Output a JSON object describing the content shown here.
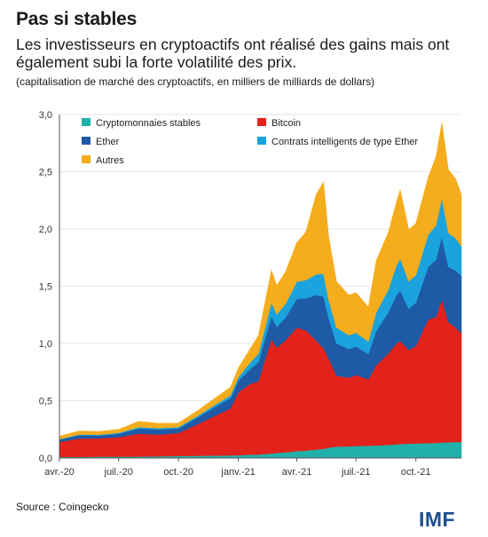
{
  "title": "Pas si stables",
  "subtitle": "Les investisseurs en cryptoactifs ont réalisé des gains mais ont également subi la forte volatilité des prix.",
  "unit_note": "(capitalisation de marché des cryptoactifs, en milliers de milliards de dollars)",
  "source": "Source : Coingecko",
  "logo": "IMF",
  "chart_data": {
    "type": "area",
    "stacked": true,
    "x": [
      "2020-04-01",
      "2020-05-01",
      "2020-06-01",
      "2020-07-01",
      "2020-08-01",
      "2020-09-01",
      "2020-10-01",
      "2020-11-01",
      "2020-12-01",
      "2020-12-20",
      "2021-01-01",
      "2021-01-20",
      "2021-02-01",
      "2021-02-21",
      "2021-03-01",
      "2021-03-15",
      "2021-04-01",
      "2021-04-15",
      "2021-05-01",
      "2021-05-12",
      "2021-05-20",
      "2021-06-01",
      "2021-06-20",
      "2021-07-01",
      "2021-07-20",
      "2021-08-01",
      "2021-08-20",
      "2021-09-01",
      "2021-09-07",
      "2021-09-20",
      "2021-10-01",
      "2021-10-20",
      "2021-11-01",
      "2021-11-10",
      "2021-11-20",
      "2021-12-01",
      "2021-12-10"
    ],
    "x_ticks": [
      "avr.-20",
      "juil.-20",
      "oct.-20",
      "janv.-21",
      "avr.-21",
      "juil.-21",
      "oct.-21"
    ],
    "ylim": [
      0,
      3.0
    ],
    "y_ticks": [
      "0,0",
      "0,5",
      "1,0",
      "1,5",
      "2,0",
      "2,5",
      "3,0"
    ],
    "legend_position": "top",
    "series": [
      {
        "name": "Cryptomonnaies stables",
        "color": "#20b2aa",
        "values": [
          0.01,
          0.01,
          0.012,
          0.012,
          0.013,
          0.015,
          0.018,
          0.02,
          0.022,
          0.023,
          0.025,
          0.03,
          0.03,
          0.04,
          0.045,
          0.05,
          0.06,
          0.065,
          0.075,
          0.08,
          0.09,
          0.1,
          0.102,
          0.105,
          0.108,
          0.11,
          0.115,
          0.12,
          0.122,
          0.125,
          0.127,
          0.13,
          0.132,
          0.135,
          0.138,
          0.14,
          0.14
        ]
      },
      {
        "name": "Bitcoin",
        "color": "#e3231b",
        "values": [
          0.13,
          0.16,
          0.16,
          0.17,
          0.2,
          0.19,
          0.2,
          0.28,
          0.36,
          0.41,
          0.55,
          0.62,
          0.64,
          1.0,
          0.92,
          0.98,
          1.08,
          1.05,
          0.95,
          0.88,
          0.78,
          0.62,
          0.6,
          0.62,
          0.58,
          0.7,
          0.8,
          0.88,
          0.9,
          0.82,
          0.85,
          1.08,
          1.1,
          1.25,
          1.05,
          1.0,
          0.95
        ]
      },
      {
        "name": "Ether",
        "color": "#1f5aa6",
        "values": [
          0.02,
          0.03,
          0.025,
          0.03,
          0.045,
          0.045,
          0.04,
          0.06,
          0.08,
          0.09,
          0.1,
          0.13,
          0.17,
          0.2,
          0.18,
          0.2,
          0.25,
          0.28,
          0.4,
          0.45,
          0.35,
          0.28,
          0.25,
          0.25,
          0.22,
          0.3,
          0.36,
          0.42,
          0.44,
          0.36,
          0.38,
          0.46,
          0.5,
          0.55,
          0.48,
          0.5,
          0.5
        ]
      },
      {
        "name": "Contrats intelligents de type Ether",
        "color": "#1aa3dc",
        "values": [
          0.005,
          0.006,
          0.007,
          0.008,
          0.012,
          0.012,
          0.012,
          0.015,
          0.02,
          0.025,
          0.03,
          0.06,
          0.07,
          0.12,
          0.11,
          0.12,
          0.15,
          0.16,
          0.18,
          0.2,
          0.16,
          0.14,
          0.12,
          0.12,
          0.11,
          0.16,
          0.2,
          0.26,
          0.28,
          0.24,
          0.24,
          0.28,
          0.3,
          0.34,
          0.3,
          0.28,
          0.26
        ]
      },
      {
        "name": "Autres",
        "color": "#f5ac1d",
        "values": [
          0.025,
          0.03,
          0.028,
          0.03,
          0.05,
          0.04,
          0.035,
          0.045,
          0.06,
          0.07,
          0.08,
          0.12,
          0.16,
          0.28,
          0.25,
          0.28,
          0.34,
          0.42,
          0.7,
          0.8,
          0.55,
          0.4,
          0.35,
          0.35,
          0.3,
          0.45,
          0.5,
          0.55,
          0.6,
          0.45,
          0.45,
          0.5,
          0.6,
          0.65,
          0.55,
          0.52,
          0.45
        ]
      }
    ]
  }
}
